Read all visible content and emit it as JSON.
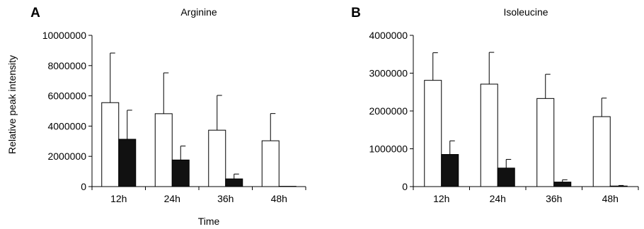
{
  "figure": {
    "ylabel": "Relative peak intensity",
    "xlabel": "Time"
  },
  "chart_data": [
    {
      "panel": "A",
      "type": "bar",
      "title": "Arginine",
      "categories": [
        "12h",
        "24h",
        "36h",
        "48h"
      ],
      "ylim": [
        0,
        10000000
      ],
      "yticks": [
        0,
        2000000,
        4000000,
        6000000,
        8000000,
        10000000
      ],
      "ytick_labels": [
        "0",
        "2000000",
        "4000000",
        "6000000",
        "8000000",
        "10000000"
      ],
      "series": [
        {
          "fill": "#ffffff",
          "values": [
            5550000,
            4820000,
            3730000,
            3030000
          ],
          "errors": [
            3280000,
            2700000,
            2300000,
            1800000
          ]
        },
        {
          "fill": "#111111",
          "values": [
            3130000,
            1760000,
            510000,
            20000
          ],
          "errors": [
            1920000,
            920000,
            320000,
            0
          ]
        }
      ]
    },
    {
      "panel": "B",
      "type": "bar",
      "title": "Isoleucine",
      "categories": [
        "12h",
        "24h",
        "36h",
        "48h"
      ],
      "ylim": [
        0,
        4000000
      ],
      "yticks": [
        0,
        1000000,
        2000000,
        3000000,
        4000000
      ],
      "ytick_labels": [
        "0",
        "1000000",
        "2000000",
        "3000000",
        "4000000"
      ],
      "series": [
        {
          "fill": "#ffffff",
          "values": [
            2810000,
            2710000,
            2330000,
            1850000
          ],
          "errors": [
            730000,
            840000,
            640000,
            490000
          ]
        },
        {
          "fill": "#111111",
          "values": [
            850000,
            490000,
            120000,
            15000
          ],
          "errors": [
            360000,
            230000,
            60000,
            15000
          ]
        }
      ]
    }
  ]
}
